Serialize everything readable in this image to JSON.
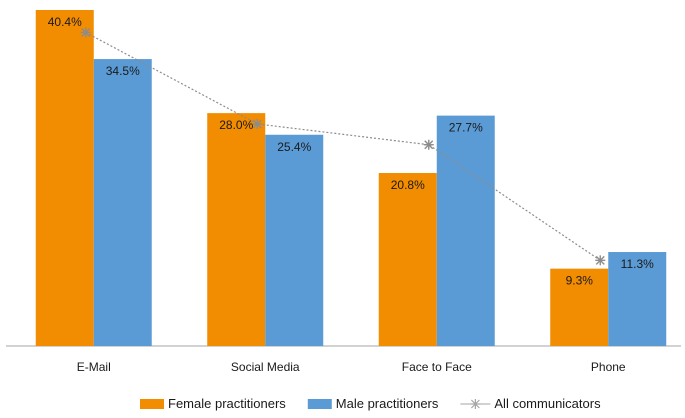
{
  "chart_data": {
    "type": "bar",
    "title": "",
    "xlabel": "",
    "ylabel": "",
    "ylim": [
      0,
      42
    ],
    "grid": false,
    "legend_position": "bottom",
    "categories": [
      "E-Mail",
      "Social Media",
      "Face to Face",
      "Phone"
    ],
    "series": [
      {
        "name": "Female practitioners",
        "type": "bar",
        "color": "#F28C00",
        "values": [
          40.4,
          28.0,
          20.8,
          9.3
        ],
        "labels": [
          "40.4%",
          "28.0%",
          "20.8%",
          "9.3%"
        ]
      },
      {
        "name": "Male practitioners",
        "type": "bar",
        "color": "#5B9BD5",
        "values": [
          34.5,
          25.4,
          27.7,
          11.3
        ],
        "labels": [
          "34.5%",
          "25.4%",
          "27.7%",
          "11.3%"
        ]
      },
      {
        "name": "All communicators",
        "type": "line",
        "color": "#9E9E9E",
        "marker": "asterisk",
        "values": [
          37.7,
          26.7,
          24.2,
          10.3
        ]
      }
    ]
  }
}
